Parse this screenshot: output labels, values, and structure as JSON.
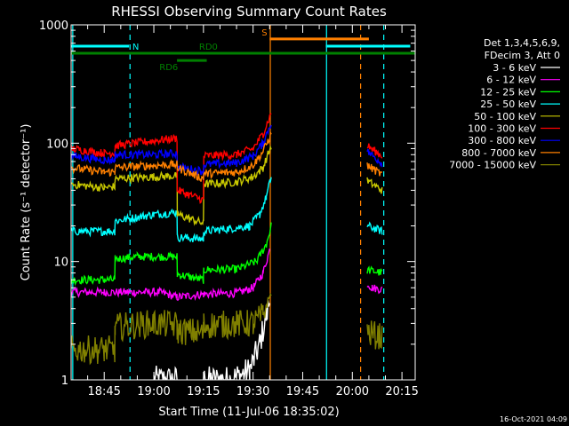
{
  "chart_data": {
    "type": "line",
    "title": "RHESSI Observing Summary Count Rates",
    "xlabel": "Start Time (11-Jul-06 18:35:02)",
    "ylabel": "Count Rate (s⁻¹ detector⁻¹)",
    "yscale": "log",
    "ylim": [
      1,
      1000
    ],
    "xlim_min": [
      0,
      104
    ],
    "y_ticks": [
      {
        "value": 1,
        "label": "1"
      },
      {
        "value": 10,
        "label": "10"
      },
      {
        "value": 100,
        "label": "100"
      },
      {
        "value": 1000,
        "label": "1000"
      }
    ],
    "x_ticks": [
      {
        "value": 10,
        "label": "18:45"
      },
      {
        "value": 25,
        "label": "19:00"
      },
      {
        "value": 40,
        "label": "19:15"
      },
      {
        "value": 55,
        "label": "19:30"
      },
      {
        "value": 70,
        "label": "19:45"
      },
      {
        "value": 85,
        "label": "20:00"
      },
      {
        "value": 100,
        "label": "20:15"
      }
    ],
    "legend": {
      "header": [
        "Det 1,3,4,5,6,9,",
        "FDecim 3, Att 0"
      ],
      "position": "right"
    },
    "flag_bars": [
      {
        "label": "N",
        "color": "#00ffff",
        "level": 660,
        "segments": [
          [
            0,
            17.5
          ],
          [
            77,
            102.5
          ]
        ]
      },
      {
        "label": "S",
        "color": "#ff8000",
        "level": 760,
        "segments": [
          [
            60,
            90
          ]
        ]
      },
      {
        "label": "RD0",
        "color": "#008000",
        "level": 575,
        "segments": [
          [
            0,
            104
          ]
        ]
      },
      {
        "label": "RD6",
        "color": "#008000",
        "level": 500,
        "segments": [
          [
            32,
            41
          ]
        ]
      }
    ],
    "vertical_lines": [
      {
        "x": 0.5,
        "color": "#00ffff",
        "style": "solid"
      },
      {
        "x": 17.8,
        "color": "#00ffff",
        "style": "dashed"
      },
      {
        "x": 60.2,
        "color": "#ff8000",
        "style": "solid"
      },
      {
        "x": 77.2,
        "color": "#00ffff",
        "style": "solid"
      },
      {
        "x": 87.5,
        "color": "#ff8000",
        "style": "dashed"
      },
      {
        "x": 94.5,
        "color": "#00ffff",
        "style": "dashed"
      }
    ],
    "series": [
      {
        "name": "3 - 6 keV",
        "color": "#ffffff",
        "segments": [
          [
            [
              25,
              1.0
            ],
            [
              32,
              1.0
            ]
          ],
          [
            [
              40,
              1.0
            ],
            [
              48,
              1.0
            ],
            [
              54,
              1.2
            ],
            [
              57,
              2.0
            ],
            [
              59,
              3.5
            ],
            [
              60,
              4.5
            ]
          ]
        ]
      },
      {
        "name": "6 - 12 keV",
        "color": "#ff00ff",
        "segments": [
          [
            [
              0,
              5.5
            ],
            [
              10,
              5.5
            ],
            [
              17.5,
              5.5
            ],
            [
              27,
              5.5
            ],
            [
              32,
              5.0
            ],
            [
              40,
              5.3
            ],
            [
              50,
              5.4
            ],
            [
              55,
              6.0
            ],
            [
              58,
              8.0
            ],
            [
              60,
              12.5
            ]
          ],
          [
            [
              89.5,
              6.5
            ],
            [
              91,
              6.0
            ],
            [
              94,
              5.8
            ]
          ]
        ]
      },
      {
        "name": "12 - 25 keV",
        "color": "#00ff00",
        "segments": [
          [
            [
              0,
              7.0
            ],
            [
              10,
              7.0
            ],
            [
              13.2,
              7.0
            ],
            [
              13.3,
              10.5
            ],
            [
              20,
              11.0
            ],
            [
              32,
              11.0
            ],
            [
              32.1,
              7.8
            ],
            [
              40,
              7.0
            ],
            [
              40.1,
              8.5
            ],
            [
              50,
              8.6
            ],
            [
              56,
              10.0
            ],
            [
              59,
              14.0
            ],
            [
              60.5,
              20.0
            ]
          ],
          [
            [
              89.5,
              8.5
            ],
            [
              94,
              8.0
            ]
          ]
        ]
      },
      {
        "name": "25 - 50 keV",
        "color": "#00ffff",
        "segments": [
          [
            [
              0,
              18.0
            ],
            [
              10,
              18.0
            ],
            [
              13.2,
              18.0
            ],
            [
              13.3,
              22.0
            ],
            [
              25,
              25.0
            ],
            [
              32,
              26.0
            ],
            [
              32.1,
              16.0
            ],
            [
              40,
              15.5
            ],
            [
              40.1,
              18.0
            ],
            [
              48,
              19.0
            ],
            [
              54,
              20.0
            ],
            [
              57,
              25.0
            ],
            [
              59,
              35.0
            ],
            [
              60.5,
              52.0
            ]
          ],
          [
            [
              89.5,
              20.0
            ],
            [
              94,
              18.0
            ]
          ]
        ]
      },
      {
        "name": "50 - 100 keV",
        "color": "#c8c800",
        "segments": [
          [
            [
              0,
              45.0
            ],
            [
              10,
              42.0
            ],
            [
              13.2,
              43.0
            ],
            [
              13.3,
              50.0
            ],
            [
              25,
              52.0
            ],
            [
              32,
              53.0
            ],
            [
              32.1,
              25.0
            ],
            [
              40,
              21.0
            ],
            [
              40.1,
              45.0
            ],
            [
              50,
              47.0
            ],
            [
              55,
              52.0
            ],
            [
              58,
              62.0
            ],
            [
              60.5,
              95.0
            ]
          ],
          [
            [
              89.5,
              48.0
            ],
            [
              94,
              40.0
            ]
          ]
        ]
      },
      {
        "name": "100 - 300 keV",
        "color": "#ff0000",
        "segments": [
          [
            [
              0,
              90.0
            ],
            [
              10,
              82.0
            ],
            [
              13.2,
              83.0
            ],
            [
              13.3,
              95.0
            ],
            [
              25,
              105.0
            ],
            [
              32,
              110.0
            ],
            [
              32.1,
              40.0
            ],
            [
              40,
              33.0
            ],
            [
              40.1,
              78.0
            ],
            [
              50,
              80.0
            ],
            [
              55,
              90.0
            ],
            [
              58,
              120.0
            ],
            [
              60.5,
              180.0
            ]
          ],
          [
            [
              89.5,
              95.0
            ],
            [
              94,
              78.0
            ]
          ]
        ]
      },
      {
        "name": "300 - 800 keV",
        "color": "#0000ff",
        "segments": [
          [
            [
              0,
              78.0
            ],
            [
              10,
              72.0
            ],
            [
              13.2,
              72.0
            ],
            [
              13.3,
              80.0
            ],
            [
              25,
              80.0
            ],
            [
              32,
              82.0
            ],
            [
              32.1,
              63.0
            ],
            [
              40,
              58.0
            ],
            [
              40.1,
              66.0
            ],
            [
              50,
              68.0
            ],
            [
              55,
              78.0
            ],
            [
              58,
              100.0
            ],
            [
              60.5,
              150.0
            ]
          ],
          [
            [
              89.5,
              85.0
            ],
            [
              94,
              68.0
            ]
          ]
        ]
      },
      {
        "name": "800 - 7000 keV",
        "color": "#ff8000",
        "segments": [
          [
            [
              0,
              62.0
            ],
            [
              10,
              57.0
            ],
            [
              13.2,
              57.0
            ],
            [
              13.3,
              62.0
            ],
            [
              25,
              65.0
            ],
            [
              32,
              66.0
            ],
            [
              32.1,
              62.0
            ],
            [
              40,
              50.0
            ],
            [
              40.1,
              55.0
            ],
            [
              50,
              57.0
            ],
            [
              55,
              65.0
            ],
            [
              58,
              85.0
            ],
            [
              60.5,
              120.0
            ]
          ],
          [
            [
              89.5,
              65.0
            ],
            [
              94,
              54.0
            ]
          ]
        ]
      },
      {
        "name": "7000 - 15000 keV",
        "color": "#808000",
        "segments": [
          [
            [
              0,
              1.8
            ],
            [
              10,
              1.8
            ],
            [
              13.2,
              1.8
            ],
            [
              13.3,
              2.8
            ],
            [
              25,
              3.0
            ],
            [
              32,
              2.9
            ],
            [
              32.1,
              2.6
            ],
            [
              40,
              2.5
            ],
            [
              40.1,
              2.9
            ],
            [
              55,
              3.0
            ],
            [
              58,
              3.5
            ],
            [
              60.5,
              5.5
            ]
          ],
          [
            [
              89.5,
              2.5
            ],
            [
              94,
              2.3
            ]
          ]
        ]
      }
    ]
  },
  "footer": {
    "date_stamp": "16-Oct-2021 04:09"
  }
}
